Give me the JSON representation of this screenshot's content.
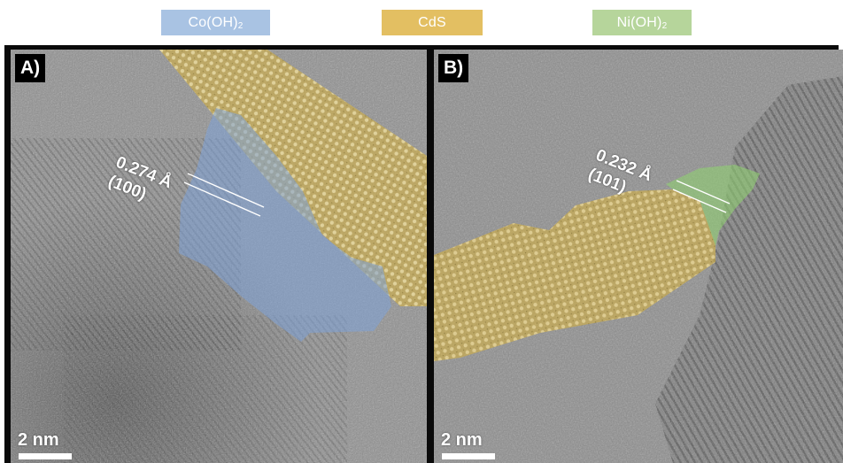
{
  "legend": {
    "co_oh2": {
      "base": "Co(OH)",
      "sub": "2",
      "color": "#a9c3e3"
    },
    "cds": {
      "label": "CdS",
      "color": "#e3bf62"
    },
    "ni_oh2": {
      "base": "Ni(OH)",
      "sub": "2",
      "color": "#b6d59b"
    }
  },
  "panel_a": {
    "label": "A)",
    "lattice_spacing": "0.274 Å",
    "lattice_plane": "(100)",
    "scale_text": "2 nm"
  },
  "panel_b": {
    "label": "B)",
    "lattice_spacing": "0.232 Å",
    "lattice_plane": "(101)",
    "scale_text": "2 nm"
  },
  "colors": {
    "frame": "#0a0a0a",
    "tem_background": "#8e8e8e",
    "co_overlay": "#7ea2d8",
    "cds_overlay": "#d8b23a",
    "ni_overlay": "#8fcf72"
  }
}
